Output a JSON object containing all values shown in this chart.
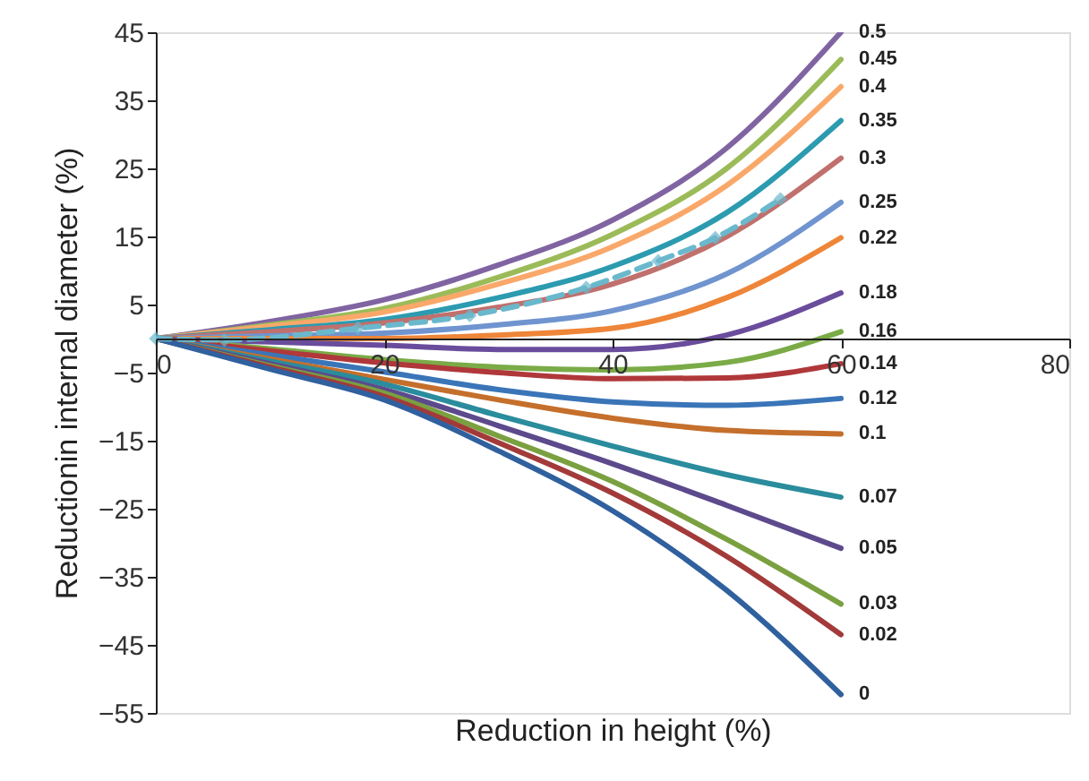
{
  "chart_data": {
    "type": "line",
    "xlabel": "Reduction in height (%)",
    "ylabel": "Reductionin internal diameter (%)",
    "x": [
      0,
      10,
      20,
      30,
      40,
      50,
      60
    ],
    "xlim": [
      0,
      80
    ],
    "xticks": [
      0,
      20,
      40,
      60,
      80
    ],
    "ylim": [
      -55,
      45
    ],
    "yticks": [
      -55,
      -45,
      -35,
      -25,
      -15,
      -5,
      5,
      15,
      25,
      35,
      45
    ],
    "grid": false,
    "marker": "none",
    "line_style": "solid",
    "series": [
      {
        "name": "0.5",
        "color": "#8064a2",
        "values": [
          0,
          2.5,
          5.7,
          10.8,
          17.4,
          28,
          45
        ]
      },
      {
        "name": "0.45",
        "color": "#9bbb59",
        "values": [
          0,
          2,
          4.4,
          9,
          15.3,
          25,
          41
        ]
      },
      {
        "name": "0.4",
        "color": "#f9a86a",
        "values": [
          0,
          1.8,
          3.9,
          8,
          13.5,
          22.5,
          37
        ]
      },
      {
        "name": "0.35",
        "color": "#2c9bb0",
        "values": [
          0,
          1.3,
          2.8,
          6,
          10.6,
          18.5,
          32
        ]
      },
      {
        "name": "0.3",
        "color": "#c0706d",
        "values": [
          0,
          1,
          2.3,
          4.6,
          8,
          15,
          26.5
        ]
      },
      {
        "name": "0.25",
        "color": "#6f94cf",
        "values": [
          0,
          0.4,
          0.8,
          2,
          4.1,
          9.5,
          20
        ]
      },
      {
        "name": "0.22",
        "color": "#ee8538",
        "values": [
          0,
          0,
          0,
          0.5,
          1.5,
          6,
          14.8
        ]
      },
      {
        "name": "0.18",
        "color": "#6a4c9c",
        "values": [
          0,
          -0.5,
          -1,
          -1.6,
          -1.6,
          0.5,
          6.7
        ]
      },
      {
        "name": "0.16",
        "color": "#7aab47",
        "values": [
          0,
          -1.5,
          -3.1,
          -4.2,
          -4.6,
          -3.5,
          1
        ]
      },
      {
        "name": "0.14",
        "color": "#b0383a",
        "values": [
          0,
          -1.8,
          -3.6,
          -5,
          -5.9,
          -5.8,
          -3.7
        ]
      },
      {
        "name": "0.12",
        "color": "#3a75b8",
        "values": [
          0,
          -2.4,
          -4.9,
          -7.5,
          -9.3,
          -9.8,
          -8.8
        ]
      },
      {
        "name": "0.1",
        "color": "#c56f2c",
        "values": [
          0,
          -3,
          -6,
          -9,
          -11.7,
          -13.5,
          -14
        ]
      },
      {
        "name": "0.07",
        "color": "#2a8c9c",
        "values": [
          0,
          -3.3,
          -6.7,
          -11.3,
          -15.8,
          -20,
          -23.3
        ]
      },
      {
        "name": "0.05",
        "color": "#5c4a8c",
        "values": [
          0,
          -3.7,
          -7.5,
          -12.8,
          -18.4,
          -24.5,
          -30.8
        ]
      },
      {
        "name": "0.03",
        "color": "#7aa040",
        "values": [
          0,
          -4,
          -8,
          -14.3,
          -21,
          -29.5,
          -39
        ]
      },
      {
        "name": "0.02",
        "color": "#a33a3a",
        "values": [
          0,
          -4.2,
          -8.5,
          -15.3,
          -22.7,
          -32,
          -43.5
        ]
      },
      {
        "name": "0",
        "color": "#30609e",
        "values": [
          0,
          -4.5,
          -9,
          -16.5,
          -25.3,
          -37,
          -52.3
        ]
      },
      {
        "color": "#6ab8cc",
        "marker": "diamond",
        "line_style": "dashed",
        "x": [
          0,
          6,
          17.7,
          27.5,
          37.7,
          44,
          49,
          54.7
        ],
        "values": [
          0,
          -0.2,
          1.5,
          3.4,
          7.5,
          11.4,
          14.8,
          20.5
        ]
      }
    ]
  }
}
